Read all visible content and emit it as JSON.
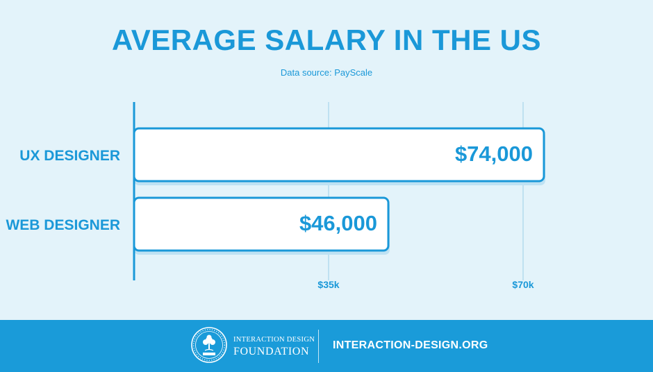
{
  "colors": {
    "background": "#e3f3fa",
    "accent": "#1a98d8",
    "bar_fill": "#ffffff",
    "bar_border": "#1a98d8",
    "bar_shadow": "#bfe2f3",
    "gridline": "#bfe1f1",
    "footer": "#1a9bd9"
  },
  "footer": {
    "logo_icon": "tree-seal-icon",
    "org_line1": "INTERACTION DESIGN",
    "org_line2": "FOUNDATION",
    "url": "INTERACTION-DESIGN.ORG"
  },
  "chart_data": {
    "type": "bar",
    "orientation": "horizontal",
    "title": "AVERAGE SALARY IN THE US",
    "subtitle": "Data source: PayScale",
    "categories": [
      "UX DESIGNER",
      "WEB DESIGNER"
    ],
    "values": [
      74000,
      46000
    ],
    "data_labels": [
      "$74,000",
      "$46,000"
    ],
    "xlim": [
      0,
      70000
    ],
    "xticks": [
      35000,
      70000
    ],
    "xtick_labels": [
      "$35k",
      "$70k"
    ],
    "grid": true,
    "legend": "none"
  }
}
